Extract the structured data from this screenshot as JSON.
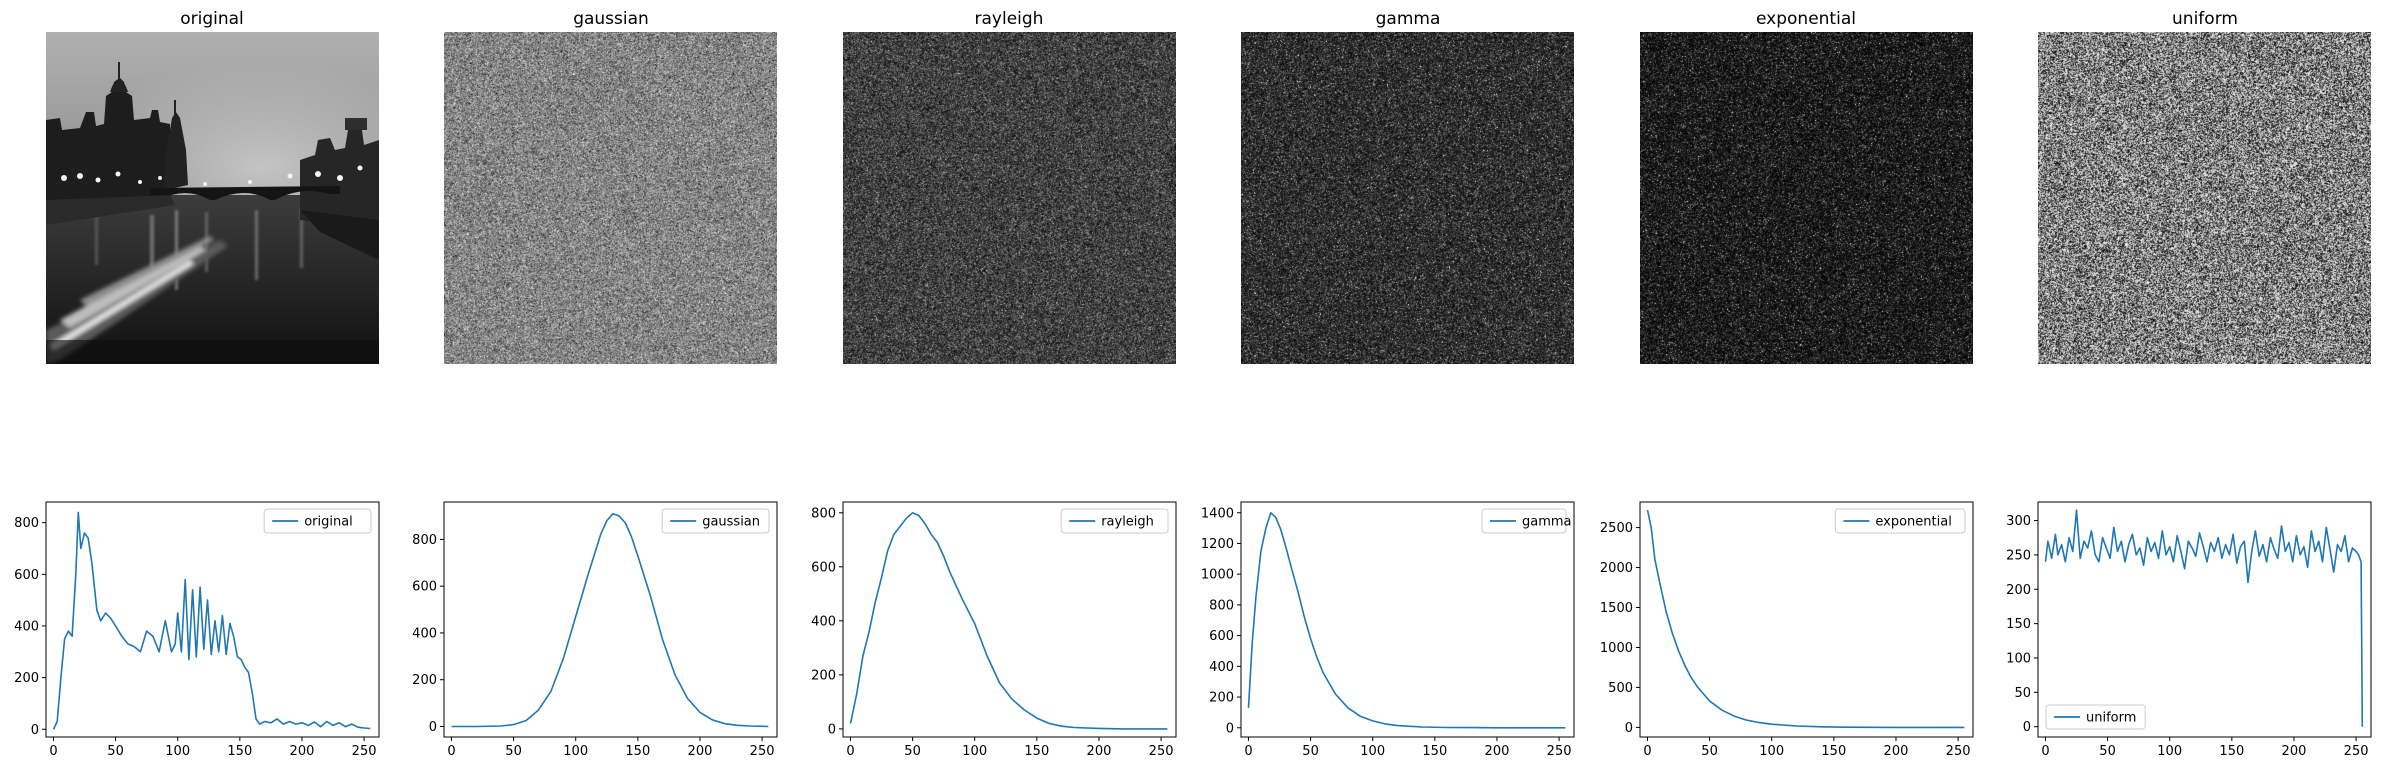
{
  "figure": {
    "colors": {
      "line": "#1f77b4",
      "axis": "#000000",
      "legend_border": "#cccccc",
      "background": "#ffffff"
    }
  },
  "panels": [
    {
      "title": "original",
      "image": "original-photo"
    },
    {
      "title": "gaussian",
      "image": "gaussian-noise",
      "noise": {
        "kind": "gaussian",
        "mean": 0.52,
        "sd": 0.15
      }
    },
    {
      "title": "rayleigh",
      "image": "rayleigh-noise",
      "noise": {
        "kind": "rayleigh",
        "sigma": 0.21
      }
    },
    {
      "title": "gamma",
      "image": "gamma-noise",
      "noise": {
        "kind": "gamma",
        "shape": 2,
        "theta": 0.1
      }
    },
    {
      "title": "exponential",
      "image": "exponential-noise",
      "noise": {
        "kind": "exponential",
        "mean": 0.13
      }
    },
    {
      "title": "uniform",
      "image": "uniform-noise",
      "noise": {
        "kind": "uniform",
        "min": 0,
        "max": 1
      }
    }
  ],
  "chart_data": [
    {
      "type": "line",
      "legend": "original",
      "legend_loc": "upper right",
      "xlim": [
        -6,
        262
      ],
      "ylim": [
        -30,
        880
      ],
      "xticks": [
        0,
        50,
        100,
        150,
        200,
        250
      ],
      "yticks": [
        0,
        200,
        400,
        600,
        800
      ],
      "series": [
        {
          "name": "original",
          "x": [
            0,
            3,
            6,
            9,
            12,
            15,
            18,
            20,
            22,
            25,
            28,
            31,
            35,
            38,
            42,
            46,
            50,
            55,
            60,
            65,
            70,
            75,
            80,
            85,
            90,
            95,
            98,
            100,
            103,
            106,
            109,
            112,
            115,
            118,
            121,
            124,
            127,
            130,
            133,
            136,
            139,
            142,
            145,
            148,
            151,
            154,
            157,
            160,
            163,
            166,
            170,
            175,
            180,
            185,
            190,
            195,
            200,
            205,
            210,
            215,
            220,
            225,
            230,
            235,
            240,
            245,
            250,
            255
          ],
          "y": [
            0,
            30,
            200,
            350,
            380,
            360,
            600,
            840,
            700,
            760,
            740,
            640,
            460,
            420,
            450,
            430,
            400,
            360,
            330,
            320,
            300,
            380,
            360,
            300,
            420,
            300,
            330,
            450,
            300,
            580,
            270,
            540,
            280,
            550,
            310,
            500,
            290,
            420,
            300,
            440,
            290,
            410,
            360,
            280,
            270,
            240,
            220,
            140,
            40,
            20,
            30,
            25,
            40,
            20,
            30,
            20,
            25,
            15,
            28,
            10,
            30,
            15,
            25,
            10,
            20,
            8,
            5,
            3
          ]
        }
      ]
    },
    {
      "type": "line",
      "legend": "gaussian",
      "legend_loc": "upper right",
      "xlim": [
        -6,
        262
      ],
      "ylim": [
        -45,
        960
      ],
      "xticks": [
        0,
        50,
        100,
        150,
        200,
        250
      ],
      "yticks": [
        0,
        200,
        400,
        600,
        800
      ],
      "series": [
        {
          "name": "gaussian",
          "x": [
            0,
            20,
            40,
            50,
            60,
            70,
            80,
            90,
            100,
            110,
            120,
            125,
            130,
            135,
            140,
            145,
            150,
            160,
            170,
            180,
            190,
            200,
            210,
            220,
            230,
            240,
            255
          ],
          "y": [
            0,
            0,
            2,
            8,
            25,
            70,
            150,
            290,
            470,
            650,
            820,
            880,
            910,
            900,
            870,
            810,
            730,
            560,
            370,
            220,
            120,
            60,
            28,
            12,
            5,
            2,
            0
          ]
        }
      ]
    },
    {
      "type": "line",
      "legend": "rayleigh",
      "legend_loc": "upper right",
      "xlim": [
        -6,
        262
      ],
      "ylim": [
        -30,
        840
      ],
      "xticks": [
        0,
        50,
        100,
        150,
        200,
        250
      ],
      "yticks": [
        0,
        200,
        400,
        600,
        800
      ],
      "series": [
        {
          "name": "rayleigh",
          "x": [
            0,
            5,
            10,
            15,
            20,
            25,
            30,
            35,
            40,
            45,
            50,
            55,
            60,
            65,
            70,
            75,
            80,
            90,
            100,
            110,
            120,
            130,
            140,
            150,
            160,
            170,
            180,
            200,
            220,
            240,
            255
          ],
          "y": [
            20,
            130,
            270,
            360,
            470,
            560,
            660,
            720,
            750,
            780,
            800,
            790,
            760,
            720,
            690,
            640,
            580,
            480,
            390,
            270,
            170,
            110,
            70,
            40,
            20,
            10,
            5,
            2,
            0,
            0,
            0
          ]
        }
      ]
    },
    {
      "type": "line",
      "legend": "gamma",
      "legend_loc": "upper right",
      "xlim": [
        -6,
        262
      ],
      "ylim": [
        -60,
        1470
      ],
      "xticks": [
        0,
        50,
        100,
        150,
        200,
        250
      ],
      "yticks": [
        0,
        200,
        400,
        600,
        800,
        1000,
        1200,
        1400
      ],
      "series": [
        {
          "name": "gamma",
          "x": [
            0,
            3,
            6,
            10,
            14,
            18,
            22,
            26,
            30,
            35,
            40,
            45,
            50,
            55,
            60,
            70,
            80,
            90,
            100,
            110,
            120,
            140,
            160,
            180,
            200,
            220,
            240,
            255
          ],
          "y": [
            130,
            550,
            850,
            1150,
            1300,
            1400,
            1370,
            1290,
            1180,
            1030,
            880,
            720,
            580,
            460,
            360,
            220,
            130,
            75,
            45,
            25,
            14,
            5,
            2,
            1,
            0,
            0,
            0,
            0
          ]
        }
      ]
    },
    {
      "type": "line",
      "legend": "exponential",
      "legend_loc": "upper right",
      "xlim": [
        -6,
        262
      ],
      "ylim": [
        -120,
        2820
      ],
      "xticks": [
        0,
        50,
        100,
        150,
        200,
        250
      ],
      "yticks": [
        0,
        500,
        1000,
        1500,
        2000,
        2500
      ],
      "series": [
        {
          "name": "exponential",
          "x": [
            0,
            3,
            6,
            10,
            15,
            20,
            25,
            30,
            35,
            40,
            50,
            60,
            70,
            80,
            90,
            100,
            120,
            140,
            160,
            180,
            200,
            220,
            240,
            255
          ],
          "y": [
            2720,
            2500,
            2100,
            1800,
            1450,
            1180,
            960,
            780,
            630,
            510,
            330,
            215,
            140,
            90,
            60,
            40,
            17,
            8,
            3,
            1,
            0,
            0,
            0,
            0
          ]
        }
      ]
    },
    {
      "type": "line",
      "legend": "uniform",
      "legend_loc": "lower left",
      "xlim": [
        -6,
        262
      ],
      "ylim": [
        -15,
        327
      ],
      "xticks": [
        0,
        50,
        100,
        150,
        200,
        250
      ],
      "yticks": [
        0,
        50,
        100,
        150,
        200,
        250,
        300
      ],
      "series": [
        {
          "name": "uniform",
          "x": [
            0,
            2,
            5,
            8,
            10,
            13,
            16,
            19,
            22,
            25,
            28,
            31,
            34,
            37,
            40,
            43,
            46,
            49,
            52,
            55,
            58,
            61,
            64,
            67,
            70,
            73,
            76,
            79,
            82,
            85,
            88,
            91,
            94,
            97,
            100,
            103,
            106,
            109,
            112,
            115,
            118,
            121,
            124,
            127,
            130,
            133,
            136,
            139,
            142,
            145,
            148,
            151,
            154,
            157,
            160,
            163,
            166,
            169,
            172,
            175,
            178,
            181,
            184,
            187,
            190,
            193,
            196,
            199,
            202,
            205,
            208,
            211,
            214,
            217,
            220,
            223,
            226,
            229,
            232,
            235,
            238,
            241,
            244,
            247,
            250,
            252,
            254,
            255
          ],
          "y": [
            240,
            270,
            245,
            280,
            250,
            265,
            240,
            275,
            255,
            315,
            245,
            270,
            260,
            285,
            250,
            240,
            275,
            260,
            245,
            290,
            255,
            270,
            240,
            265,
            280,
            250,
            260,
            235,
            275,
            255,
            268,
            245,
            285,
            250,
            262,
            240,
            278,
            255,
            230,
            270,
            260,
            248,
            282,
            262,
            240,
            268,
            255,
            275,
            245,
            265,
            250,
            280,
            238,
            262,
            270,
            210,
            255,
            285,
            248,
            265,
            240,
            275,
            258,
            245,
            292,
            255,
            268,
            240,
            278,
            250,
            262,
            232,
            285,
            255,
            270,
            240,
            290,
            258,
            225,
            265,
            255,
            278,
            240,
            260,
            255,
            250,
            240,
            0
          ]
        }
      ]
    }
  ]
}
